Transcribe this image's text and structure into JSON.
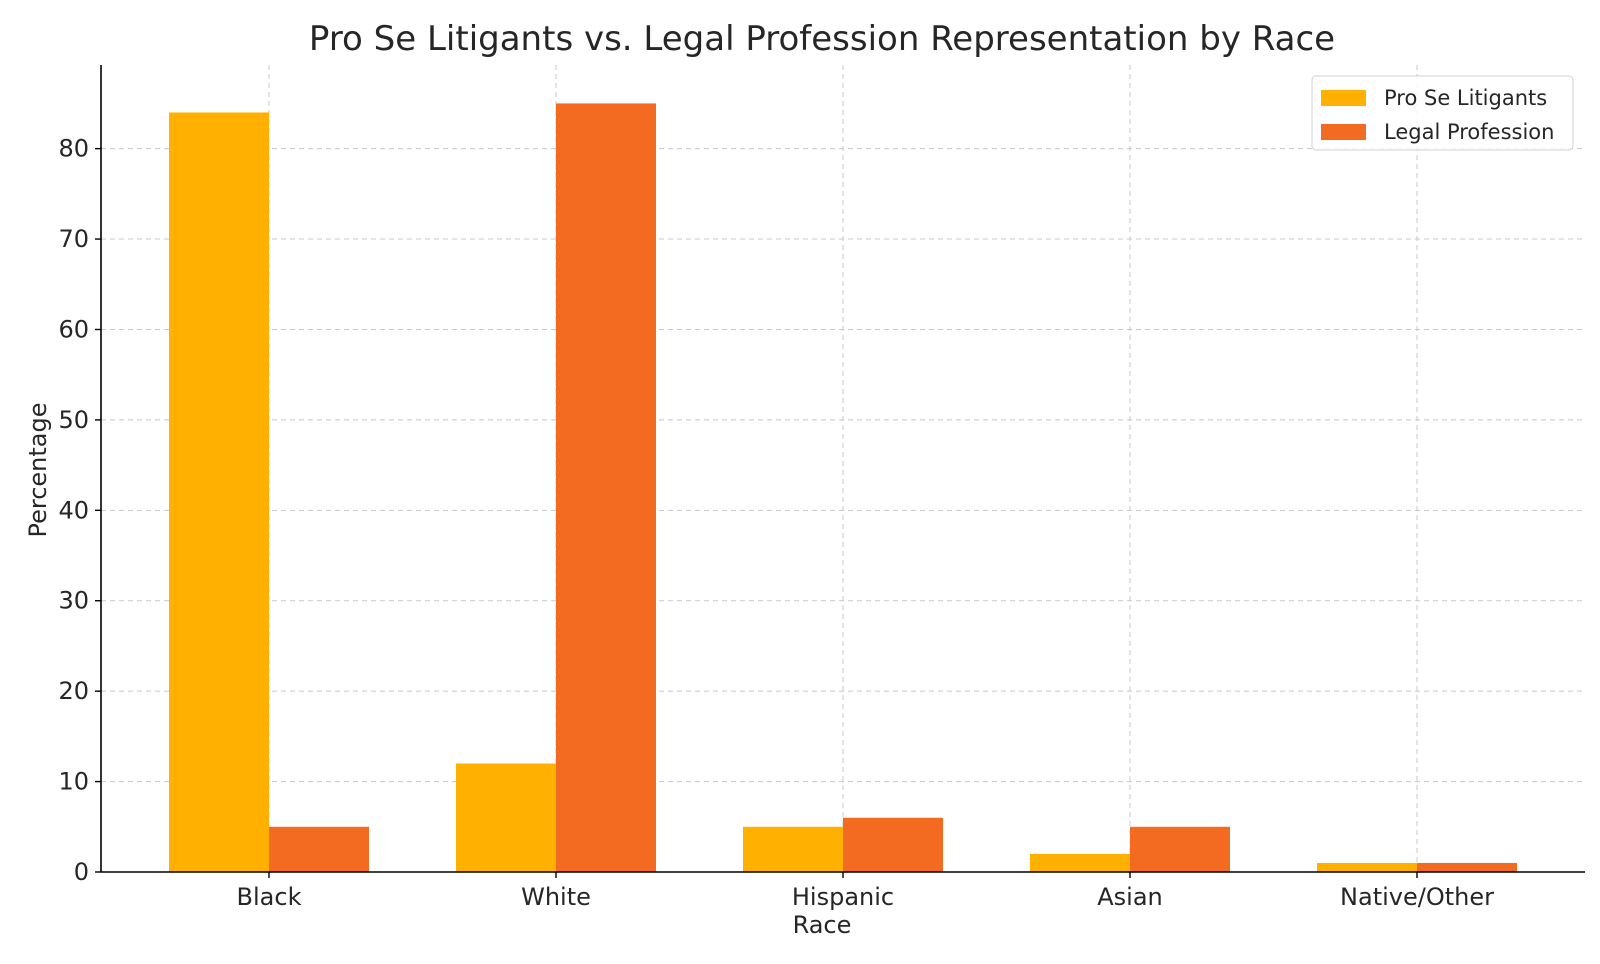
{
  "chart_data": {
    "type": "bar",
    "title": "Pro Se Litigants vs. Legal Profession Representation by Race",
    "xlabel": "Race",
    "ylabel": "Percentage",
    "categories": [
      "Black",
      "White",
      "Hispanic",
      "Asian",
      "Native/Other"
    ],
    "series": [
      {
        "name": "Pro Se Litigants",
        "values": [
          84,
          12,
          5,
          2,
          1
        ],
        "color": "#FFB000"
      },
      {
        "name": "Legal Profession",
        "values": [
          5,
          85,
          6,
          5,
          1
        ],
        "color": "#F26B21"
      }
    ],
    "yticks": [
      0,
      10,
      20,
      30,
      40,
      50,
      60,
      70,
      80
    ],
    "ylim": [
      0,
      89.25
    ],
    "grid": true,
    "legend_position": "top-right"
  }
}
